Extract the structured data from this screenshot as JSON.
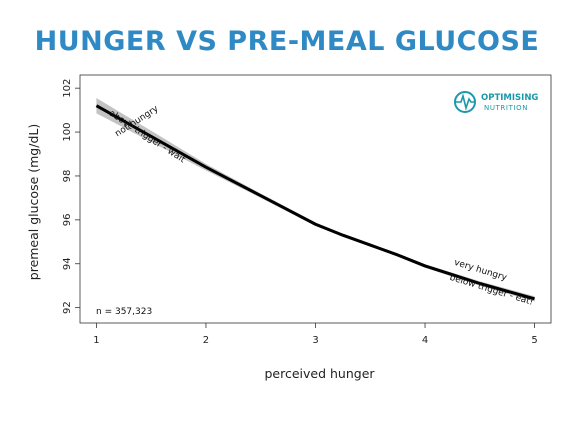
{
  "colors": {
    "title": "#2e89c4",
    "line": "#000000",
    "band": "#b8b8b8",
    "brand": "#1a9aa8"
  },
  "brand": {
    "line1": "OPTIMISING",
    "line2": "NUTRITION",
    "icon": "heartbeat-logo-icon"
  },
  "chart_data": {
    "type": "line",
    "title": "HUNGER VS PRE-MEAL GLUCOSE",
    "xlabel": "perceived hunger",
    "ylabel": "premeal glucose (mg/dL)",
    "xlim": [
      0.85,
      5.15
    ],
    "ylim": [
      91.3,
      102.6
    ],
    "xticks": [
      1,
      2,
      3,
      4,
      5
    ],
    "yticks": [
      92,
      94,
      96,
      98,
      100,
      102
    ],
    "grid": false,
    "series": [
      {
        "x": [
          1,
          1.25,
          1.5,
          1.75,
          2,
          2.25,
          2.5,
          2.75,
          3,
          3.25,
          3.5,
          3.75,
          4,
          4.25,
          4.5,
          4.75,
          5
        ],
        "y": [
          101.2,
          100.5,
          99.8,
          99.1,
          98.4,
          97.75,
          97.1,
          96.45,
          95.8,
          95.3,
          94.85,
          94.4,
          93.9,
          93.5,
          93.1,
          92.75,
          92.4
        ],
        "ci_halfwidth": [
          0.35,
          0.3,
          0.26,
          0.2,
          0.15,
          0.12,
          0.1,
          0.09,
          0.08,
          0.07,
          0.07,
          0.07,
          0.08,
          0.09,
          0.1,
          0.11,
          0.12
        ]
      }
    ],
    "annotations": [
      {
        "text": "not hungry",
        "x": 1.38,
        "y": 100.4,
        "angle": -33
      },
      {
        "text": "above trigger - wait",
        "x": 1.45,
        "y": 99.7,
        "angle": 33
      },
      {
        "text": "very hungry",
        "x": 4.5,
        "y": 93.6,
        "angle": 17
      },
      {
        "text": "below trigger - eat!",
        "x": 4.6,
        "y": 92.7,
        "angle": 17
      }
    ],
    "n_label": "n = 357,323"
  }
}
